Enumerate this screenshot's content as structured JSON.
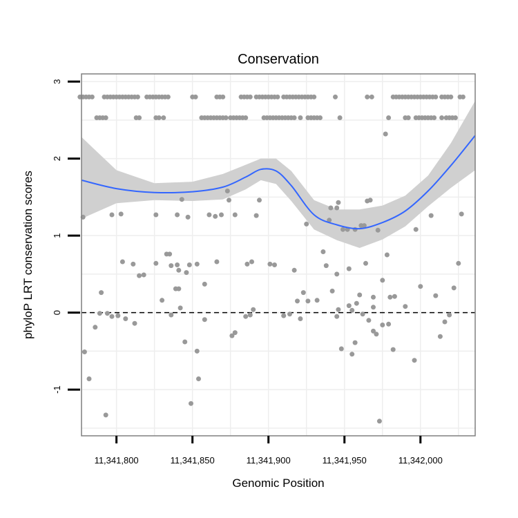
{
  "chart_data": {
    "type": "scatter",
    "title": "Conservation",
    "xlabel": "Genomic Position",
    "ylabel": "phyloP LRT conservation scores",
    "xlim": [
      11341777,
      11342036
    ],
    "ylim": [
      -1.6,
      3.1
    ],
    "x_ticks": [
      11341800,
      11341850,
      11341900,
      11341950,
      11342000
    ],
    "x_tick_labels": [
      "11,341,800",
      "11,341,850",
      "11,341,900",
      "11,341,950",
      "11,342,000"
    ],
    "y_ticks": [
      -1,
      0,
      1,
      2,
      3
    ],
    "y_tick_labels": [
      "-1",
      "0",
      "1",
      "2",
      "3"
    ],
    "grid": true,
    "reference_line": {
      "y": 0,
      "style": "dashed",
      "color": "#000000"
    },
    "colors": {
      "points": "#999999",
      "smooth": "#3366FF",
      "band": "#D0D0D0",
      "grid": "#EEEEEE",
      "frame": "#7F7F7F"
    },
    "smooth": {
      "x": [
        11341777,
        11341800,
        11341825,
        11341850,
        11341870,
        11341885,
        11341895,
        11341905,
        11341915,
        11341930,
        11341945,
        11341960,
        11341975,
        11341990,
        11342005,
        11342020,
        11342036
      ],
      "y": [
        1.72,
        1.61,
        1.56,
        1.57,
        1.63,
        1.76,
        1.86,
        1.84,
        1.65,
        1.27,
        1.14,
        1.09,
        1.17,
        1.32,
        1.58,
        1.91,
        2.3
      ],
      "lower": [
        1.22,
        1.42,
        1.46,
        1.45,
        1.47,
        1.6,
        1.72,
        1.67,
        1.45,
        1.08,
        0.94,
        0.84,
        0.95,
        1.12,
        1.38,
        1.62,
        1.85
      ],
      "upper": [
        2.28,
        1.85,
        1.68,
        1.7,
        1.8,
        1.92,
        2.0,
        2.0,
        1.84,
        1.46,
        1.34,
        1.34,
        1.39,
        1.52,
        1.78,
        2.2,
        2.75
      ]
    },
    "points": [
      {
        "x": 11341776,
        "y": 2.8
      },
      {
        "x": 11341778,
        "y": 2.8
      },
      {
        "x": 11341780,
        "y": 2.8
      },
      {
        "x": 11341782,
        "y": 2.8
      },
      {
        "x": 11341784,
        "y": 2.8
      },
      {
        "x": 11341792,
        "y": 2.8
      },
      {
        "x": 11341794,
        "y": 2.8
      },
      {
        "x": 11341796,
        "y": 2.8
      },
      {
        "x": 11341798,
        "y": 2.8
      },
      {
        "x": 11341800,
        "y": 2.8
      },
      {
        "x": 11341802,
        "y": 2.8
      },
      {
        "x": 11341804,
        "y": 2.8
      },
      {
        "x": 11341806,
        "y": 2.8
      },
      {
        "x": 11341808,
        "y": 2.8
      },
      {
        "x": 11341810,
        "y": 2.8
      },
      {
        "x": 11341812,
        "y": 2.8
      },
      {
        "x": 11341814,
        "y": 2.8
      },
      {
        "x": 11341820,
        "y": 2.8
      },
      {
        "x": 11341822,
        "y": 2.8
      },
      {
        "x": 11341824,
        "y": 2.8
      },
      {
        "x": 11341826,
        "y": 2.8
      },
      {
        "x": 11341828,
        "y": 2.8
      },
      {
        "x": 11341830,
        "y": 2.8
      },
      {
        "x": 11341832,
        "y": 2.8
      },
      {
        "x": 11341834,
        "y": 2.8
      },
      {
        "x": 11341850,
        "y": 2.8
      },
      {
        "x": 11341852,
        "y": 2.8
      },
      {
        "x": 11341866,
        "y": 2.8
      },
      {
        "x": 11341868,
        "y": 2.8
      },
      {
        "x": 11341870,
        "y": 2.8
      },
      {
        "x": 11341882,
        "y": 2.8
      },
      {
        "x": 11341884,
        "y": 2.8
      },
      {
        "x": 11341886,
        "y": 2.8
      },
      {
        "x": 11341888,
        "y": 2.8
      },
      {
        "x": 11341892,
        "y": 2.8
      },
      {
        "x": 11341894,
        "y": 2.8
      },
      {
        "x": 11341896,
        "y": 2.8
      },
      {
        "x": 11341898,
        "y": 2.8
      },
      {
        "x": 11341900,
        "y": 2.8
      },
      {
        "x": 11341902,
        "y": 2.8
      },
      {
        "x": 11341904,
        "y": 2.8
      },
      {
        "x": 11341906,
        "y": 2.8
      },
      {
        "x": 11341910,
        "y": 2.8
      },
      {
        "x": 11341912,
        "y": 2.8
      },
      {
        "x": 11341914,
        "y": 2.8
      },
      {
        "x": 11341916,
        "y": 2.8
      },
      {
        "x": 11341918,
        "y": 2.8
      },
      {
        "x": 11341920,
        "y": 2.8
      },
      {
        "x": 11341922,
        "y": 2.8
      },
      {
        "x": 11341924,
        "y": 2.8
      },
      {
        "x": 11341926,
        "y": 2.8
      },
      {
        "x": 11341928,
        "y": 2.8
      },
      {
        "x": 11341930,
        "y": 2.8
      },
      {
        "x": 11341944,
        "y": 2.8
      },
      {
        "x": 11341965,
        "y": 2.8
      },
      {
        "x": 11341968,
        "y": 2.8
      },
      {
        "x": 11341982,
        "y": 2.8
      },
      {
        "x": 11341984,
        "y": 2.8
      },
      {
        "x": 11341986,
        "y": 2.8
      },
      {
        "x": 11341988,
        "y": 2.8
      },
      {
        "x": 11341990,
        "y": 2.8
      },
      {
        "x": 11341992,
        "y": 2.8
      },
      {
        "x": 11341994,
        "y": 2.8
      },
      {
        "x": 11341996,
        "y": 2.8
      },
      {
        "x": 11341998,
        "y": 2.8
      },
      {
        "x": 11342000,
        "y": 2.8
      },
      {
        "x": 11342002,
        "y": 2.8
      },
      {
        "x": 11342004,
        "y": 2.8
      },
      {
        "x": 11342006,
        "y": 2.8
      },
      {
        "x": 11342008,
        "y": 2.8
      },
      {
        "x": 11342010,
        "y": 2.8
      },
      {
        "x": 11342014,
        "y": 2.8
      },
      {
        "x": 11342016,
        "y": 2.8
      },
      {
        "x": 11342018,
        "y": 2.8
      },
      {
        "x": 11342020,
        "y": 2.8
      },
      {
        "x": 11342026,
        "y": 2.8
      },
      {
        "x": 11342028,
        "y": 2.8
      },
      {
        "x": 11341787,
        "y": 2.53
      },
      {
        "x": 11341789,
        "y": 2.53
      },
      {
        "x": 11341791,
        "y": 2.53
      },
      {
        "x": 11341793,
        "y": 2.53
      },
      {
        "x": 11341813,
        "y": 2.53
      },
      {
        "x": 11341815,
        "y": 2.53
      },
      {
        "x": 11341826,
        "y": 2.53
      },
      {
        "x": 11341828,
        "y": 2.53
      },
      {
        "x": 11341831,
        "y": 2.53
      },
      {
        "x": 11341856,
        "y": 2.53
      },
      {
        "x": 11341858,
        "y": 2.53
      },
      {
        "x": 11341860,
        "y": 2.53
      },
      {
        "x": 11341862,
        "y": 2.53
      },
      {
        "x": 11341864,
        "y": 2.53
      },
      {
        "x": 11341866,
        "y": 2.53
      },
      {
        "x": 11341868,
        "y": 2.53
      },
      {
        "x": 11341870,
        "y": 2.53
      },
      {
        "x": 11341872,
        "y": 2.53
      },
      {
        "x": 11341875,
        "y": 2.53
      },
      {
        "x": 11341877,
        "y": 2.53
      },
      {
        "x": 11341879,
        "y": 2.53
      },
      {
        "x": 11341881,
        "y": 2.53
      },
      {
        "x": 11341883,
        "y": 2.53
      },
      {
        "x": 11341885,
        "y": 2.53
      },
      {
        "x": 11341897,
        "y": 2.53
      },
      {
        "x": 11341899,
        "y": 2.53
      },
      {
        "x": 11341901,
        "y": 2.53
      },
      {
        "x": 11341903,
        "y": 2.53
      },
      {
        "x": 11341905,
        "y": 2.53
      },
      {
        "x": 11341907,
        "y": 2.53
      },
      {
        "x": 11341909,
        "y": 2.53
      },
      {
        "x": 11341911,
        "y": 2.53
      },
      {
        "x": 11341913,
        "y": 2.53
      },
      {
        "x": 11341915,
        "y": 2.53
      },
      {
        "x": 11341917,
        "y": 2.53
      },
      {
        "x": 11341921,
        "y": 2.53
      },
      {
        "x": 11341926,
        "y": 2.53
      },
      {
        "x": 11341928,
        "y": 2.53
      },
      {
        "x": 11341930,
        "y": 2.53
      },
      {
        "x": 11341932,
        "y": 2.53
      },
      {
        "x": 11341934,
        "y": 2.53
      },
      {
        "x": 11341947,
        "y": 2.53
      },
      {
        "x": 11341979,
        "y": 2.53
      },
      {
        "x": 11341990,
        "y": 2.53
      },
      {
        "x": 11341992,
        "y": 2.53
      },
      {
        "x": 11341997,
        "y": 2.53
      },
      {
        "x": 11341999,
        "y": 2.53
      },
      {
        "x": 11342001,
        "y": 2.53
      },
      {
        "x": 11342003,
        "y": 2.53
      },
      {
        "x": 11342005,
        "y": 2.53
      },
      {
        "x": 11342007,
        "y": 2.53
      },
      {
        "x": 11342009,
        "y": 2.53
      },
      {
        "x": 11342014,
        "y": 2.53
      },
      {
        "x": 11342017,
        "y": 2.53
      },
      {
        "x": 11342019,
        "y": 2.53
      },
      {
        "x": 11342021,
        "y": 2.53
      },
      {
        "x": 11342023,
        "y": 2.53
      },
      {
        "x": 11341977,
        "y": 2.32
      },
      {
        "x": 11341843,
        "y": 1.47
      },
      {
        "x": 11341873,
        "y": 1.58
      },
      {
        "x": 11341874,
        "y": 1.46
      },
      {
        "x": 11341894,
        "y": 1.46
      },
      {
        "x": 11341946,
        "y": 1.43
      },
      {
        "x": 11341941,
        "y": 1.36
      },
      {
        "x": 11341945,
        "y": 1.36
      },
      {
        "x": 11341965,
        "y": 1.45
      },
      {
        "x": 11341967,
        "y": 1.46
      },
      {
        "x": 11341778,
        "y": 1.24
      },
      {
        "x": 11341797,
        "y": 1.27
      },
      {
        "x": 11341803,
        "y": 1.28
      },
      {
        "x": 11341826,
        "y": 1.27
      },
      {
        "x": 11341840,
        "y": 1.27
      },
      {
        "x": 11341847,
        "y": 1.24
      },
      {
        "x": 11341861,
        "y": 1.27
      },
      {
        "x": 11341865,
        "y": 1.25
      },
      {
        "x": 11341869,
        "y": 1.27
      },
      {
        "x": 11341878,
        "y": 1.27
      },
      {
        "x": 11341892,
        "y": 1.26
      },
      {
        "x": 11341940,
        "y": 1.2
      },
      {
        "x": 11341925,
        "y": 1.15
      },
      {
        "x": 11341949,
        "y": 1.08
      },
      {
        "x": 11341952,
        "y": 1.08
      },
      {
        "x": 11341957,
        "y": 1.08
      },
      {
        "x": 11341961,
        "y": 1.13
      },
      {
        "x": 11341963,
        "y": 1.13
      },
      {
        "x": 11341972,
        "y": 1.07
      },
      {
        "x": 11341997,
        "y": 1.08
      },
      {
        "x": 11342007,
        "y": 1.26
      },
      {
        "x": 11342027,
        "y": 1.28
      },
      {
        "x": 11341833,
        "y": 0.76
      },
      {
        "x": 11341835,
        "y": 0.76
      },
      {
        "x": 11341978,
        "y": 0.75
      },
      {
        "x": 11341936,
        "y": 0.79
      },
      {
        "x": 11341804,
        "y": 0.66
      },
      {
        "x": 11341811,
        "y": 0.63
      },
      {
        "x": 11341826,
        "y": 0.64
      },
      {
        "x": 11341836,
        "y": 0.61
      },
      {
        "x": 11341840,
        "y": 0.62
      },
      {
        "x": 11341848,
        "y": 0.62
      },
      {
        "x": 11341853,
        "y": 0.63
      },
      {
        "x": 11341841,
        "y": 0.55
      },
      {
        "x": 11341866,
        "y": 0.66
      },
      {
        "x": 11341886,
        "y": 0.63
      },
      {
        "x": 11341889,
        "y": 0.66
      },
      {
        "x": 11341901,
        "y": 0.63
      },
      {
        "x": 11341904,
        "y": 0.62
      },
      {
        "x": 11341938,
        "y": 0.61
      },
      {
        "x": 11341964,
        "y": 0.64
      },
      {
        "x": 11341815,
        "y": 0.48
      },
      {
        "x": 11341818,
        "y": 0.49
      },
      {
        "x": 11341846,
        "y": 0.52
      },
      {
        "x": 11341917,
        "y": 0.55
      },
      {
        "x": 11341945,
        "y": 0.5
      },
      {
        "x": 11341953,
        "y": 0.57
      },
      {
        "x": 11341839,
        "y": 0.31
      },
      {
        "x": 11341841,
        "y": 0.31
      },
      {
        "x": 11341858,
        "y": 0.37
      },
      {
        "x": 11341942,
        "y": 0.28
      },
      {
        "x": 11341975,
        "y": 0.42
      },
      {
        "x": 11341790,
        "y": 0.26
      },
      {
        "x": 11341830,
        "y": 0.16
      },
      {
        "x": 11341923,
        "y": 0.26
      },
      {
        "x": 11341926,
        "y": 0.15
      },
      {
        "x": 11341932,
        "y": 0.16
      },
      {
        "x": 11341958,
        "y": 0.12
      },
      {
        "x": 11341960,
        "y": 0.23
      },
      {
        "x": 11341969,
        "y": 0.2
      },
      {
        "x": 11341980,
        "y": 0.2
      },
      {
        "x": 11341983,
        "y": 0.21
      },
      {
        "x": 11342000,
        "y": 0.34
      },
      {
        "x": 11342010,
        "y": 0.22
      },
      {
        "x": 11342022,
        "y": 0.32
      },
      {
        "x": 11342025,
        "y": 0.64
      },
      {
        "x": 11341919,
        "y": 0.15
      },
      {
        "x": 11341890,
        "y": 0.04
      },
      {
        "x": 11341946,
        "y": 0.04
      },
      {
        "x": 11341953,
        "y": 0.09
      },
      {
        "x": 11341955,
        "y": 0.03
      },
      {
        "x": 11341962,
        "y": -0.02
      },
      {
        "x": 11341969,
        "y": 0.07
      },
      {
        "x": 11341990,
        "y": 0.08
      },
      {
        "x": 11341842,
        "y": 0.06
      },
      {
        "x": 11341789,
        "y": -0.01
      },
      {
        "x": 11341794,
        "y": -0.01
      },
      {
        "x": 11341797,
        "y": -0.05
      },
      {
        "x": 11341801,
        "y": -0.04
      },
      {
        "x": 11341836,
        "y": -0.03
      },
      {
        "x": 11341858,
        "y": -0.09
      },
      {
        "x": 11341910,
        "y": -0.04
      },
      {
        "x": 11341914,
        "y": -0.02
      },
      {
        "x": 11341921,
        "y": -0.08
      },
      {
        "x": 11341945,
        "y": -0.05
      },
      {
        "x": 11341885,
        "y": -0.05
      },
      {
        "x": 11341888,
        "y": -0.03
      },
      {
        "x": 11342016,
        "y": -0.12
      },
      {
        "x": 11342019,
        "y": -0.03
      },
      {
        "x": 11341806,
        "y": -0.08
      },
      {
        "x": 11341812,
        "y": -0.14
      },
      {
        "x": 11341966,
        "y": -0.1
      },
      {
        "x": 11341975,
        "y": -0.16
      },
      {
        "x": 11341979,
        "y": -0.15
      },
      {
        "x": 11341786,
        "y": -0.19
      },
      {
        "x": 11341878,
        "y": -0.26
      },
      {
        "x": 11341876,
        "y": -0.3
      },
      {
        "x": 11341969,
        "y": -0.24
      },
      {
        "x": 11341971,
        "y": -0.28
      },
      {
        "x": 11342013,
        "y": -0.31
      },
      {
        "x": 11341845,
        "y": -0.38
      },
      {
        "x": 11341957,
        "y": -0.39
      },
      {
        "x": 11341982,
        "y": -0.48
      },
      {
        "x": 11341948,
        "y": -0.47
      },
      {
        "x": 11341955,
        "y": -0.54
      },
      {
        "x": 11341779,
        "y": -0.51
      },
      {
        "x": 11341853,
        "y": -0.5
      },
      {
        "x": 11341996,
        "y": -0.62
      },
      {
        "x": 11341782,
        "y": -0.86
      },
      {
        "x": 11341854,
        "y": -0.86
      },
      {
        "x": 11341849,
        "y": -1.18
      },
      {
        "x": 11341793,
        "y": -1.33
      },
      {
        "x": 11341973,
        "y": -1.41
      }
    ]
  }
}
